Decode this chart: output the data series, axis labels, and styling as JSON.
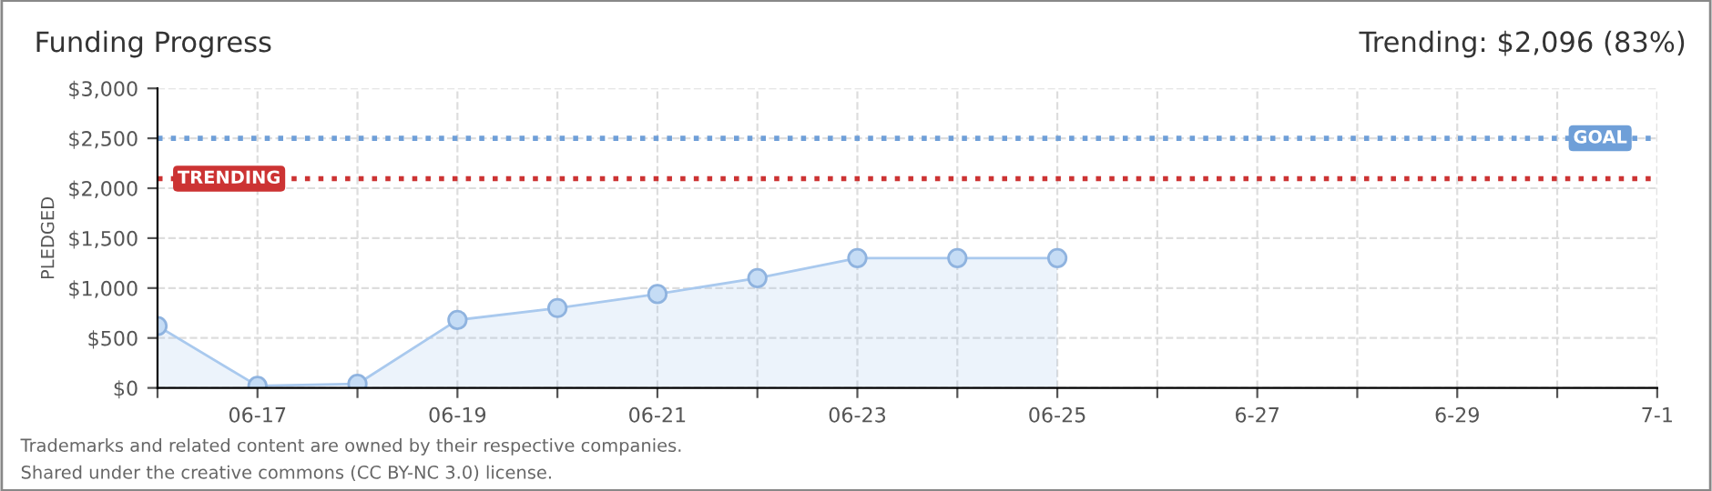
{
  "chart_data": {
    "type": "area",
    "title": "Funding Progress",
    "ylabel": "PLEDGED",
    "categories": [
      null,
      "06-17",
      null,
      "06-19",
      null,
      "06-21",
      null,
      "06-23",
      null,
      "06-25",
      null,
      "6-27",
      null,
      "6-29",
      null,
      "7-1"
    ],
    "series": [
      {
        "color": "#a9c9ee",
        "values": [
          620,
          20,
          40,
          680,
          800,
          940,
          1100,
          1300,
          1300,
          1300,
          null,
          null,
          null,
          null,
          null,
          null
        ]
      }
    ],
    "ylim": [
      0,
      3000
    ],
    "yticks": [
      {
        "value": 0,
        "label": "$0"
      },
      {
        "value": 500,
        "label": "$500"
      },
      {
        "value": 1000,
        "label": "$1,000"
      },
      {
        "value": 1500,
        "label": "$1,500"
      },
      {
        "value": 2000,
        "label": "$2,000"
      },
      {
        "value": 2500,
        "label": "$2,500"
      },
      {
        "value": 3000,
        "label": "$3,000"
      }
    ],
    "ref_lines": [
      {
        "axis": "y",
        "value": 2500,
        "label": "GOAL",
        "color": "#6f9fd8",
        "line_style": "dotted"
      },
      {
        "axis": "y",
        "value": 2096,
        "label": "TRENDING",
        "color": "#cc3333",
        "line_style": "dotted"
      }
    ],
    "annotations": [
      "Trending: $2,096 (83%)",
      "Trademarks and related content are owned by their respective companies.",
      "Shared under the creative commons (CC BY-NC 3.0) license."
    ],
    "marker": "circle",
    "grid": true
  }
}
